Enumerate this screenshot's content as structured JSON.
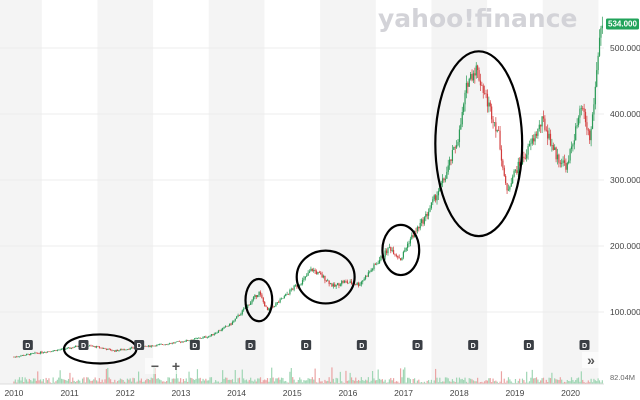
{
  "brand": {
    "logo_text": "yahoo!finance"
  },
  "chart_data": {
    "type": "candlestick",
    "y_axis": {
      "ticks": [
        100,
        200,
        300,
        400,
        500
      ],
      "tick_labels": [
        "100.000",
        "200.000",
        "300.000",
        "400.000",
        "500.000"
      ],
      "ylim": [
        25,
        560
      ],
      "position": "right"
    },
    "x_axis": {
      "tick_labels": [
        "2010",
        "2011",
        "2012",
        "2013",
        "2014",
        "2015",
        "2016",
        "2017",
        "2018",
        "2019",
        "2020"
      ],
      "xlim": [
        2009.75,
        2020.6
      ]
    },
    "last_price": {
      "value": 534,
      "label": "534.000",
      "color": "#21a35a"
    },
    "volume": {
      "max_label": "82.04M"
    },
    "dividend_markers": {
      "label": "D",
      "x": [
        2010.25,
        2011.25,
        2012.25,
        2013.25,
        2014.25,
        2015.25,
        2016.25,
        2017.25,
        2018.25,
        2019.25,
        2020.25
      ]
    },
    "price_path": [
      [
        2010.0,
        32
      ],
      [
        2010.5,
        39
      ],
      [
        2011.0,
        45
      ],
      [
        2011.2,
        50
      ],
      [
        2011.5,
        47
      ],
      [
        2011.8,
        41
      ],
      [
        2012.1,
        45
      ],
      [
        2012.6,
        50
      ],
      [
        2013.0,
        55
      ],
      [
        2013.5,
        63
      ],
      [
        2013.9,
        82
      ],
      [
        2014.2,
        110
      ],
      [
        2014.4,
        130
      ],
      [
        2014.55,
        102
      ],
      [
        2014.8,
        118
      ],
      [
        2015.0,
        135
      ],
      [
        2015.2,
        148
      ],
      [
        2015.35,
        165
      ],
      [
        2015.6,
        150
      ],
      [
        2015.75,
        138
      ],
      [
        2015.9,
        146
      ],
      [
        2016.2,
        142
      ],
      [
        2016.5,
        172
      ],
      [
        2016.75,
        198
      ],
      [
        2016.95,
        180
      ],
      [
        2017.1,
        208
      ],
      [
        2017.4,
        245
      ],
      [
        2017.75,
        305
      ],
      [
        2018.0,
        370
      ],
      [
        2018.15,
        450
      ],
      [
        2018.3,
        470
      ],
      [
        2018.5,
        420
      ],
      [
        2018.7,
        372
      ],
      [
        2018.85,
        280
      ],
      [
        2018.95,
        305
      ],
      [
        2019.2,
        340
      ],
      [
        2019.5,
        390
      ],
      [
        2019.75,
        335
      ],
      [
        2019.95,
        320
      ],
      [
        2020.0,
        345
      ],
      [
        2020.2,
        410
      ],
      [
        2020.35,
        360
      ],
      [
        2020.45,
        445
      ],
      [
        2020.52,
        520
      ],
      [
        2020.57,
        534
      ]
    ],
    "highlight_circles": [
      {
        "x": 2011.55,
        "y": 44,
        "rx": 0.65,
        "ry": 22
      },
      {
        "x": 2014.4,
        "y": 118,
        "rx": 0.24,
        "ry": 32
      },
      {
        "x": 2015.6,
        "y": 153,
        "rx": 0.52,
        "ry": 40
      },
      {
        "x": 2016.95,
        "y": 194,
        "rx": 0.33,
        "ry": 38
      },
      {
        "x": 2018.35,
        "y": 355,
        "rx": 0.78,
        "ry": 140
      }
    ]
  },
  "controls": {
    "zoom_out_label": "−",
    "zoom_in_label": "+",
    "scroll_label": "»"
  }
}
